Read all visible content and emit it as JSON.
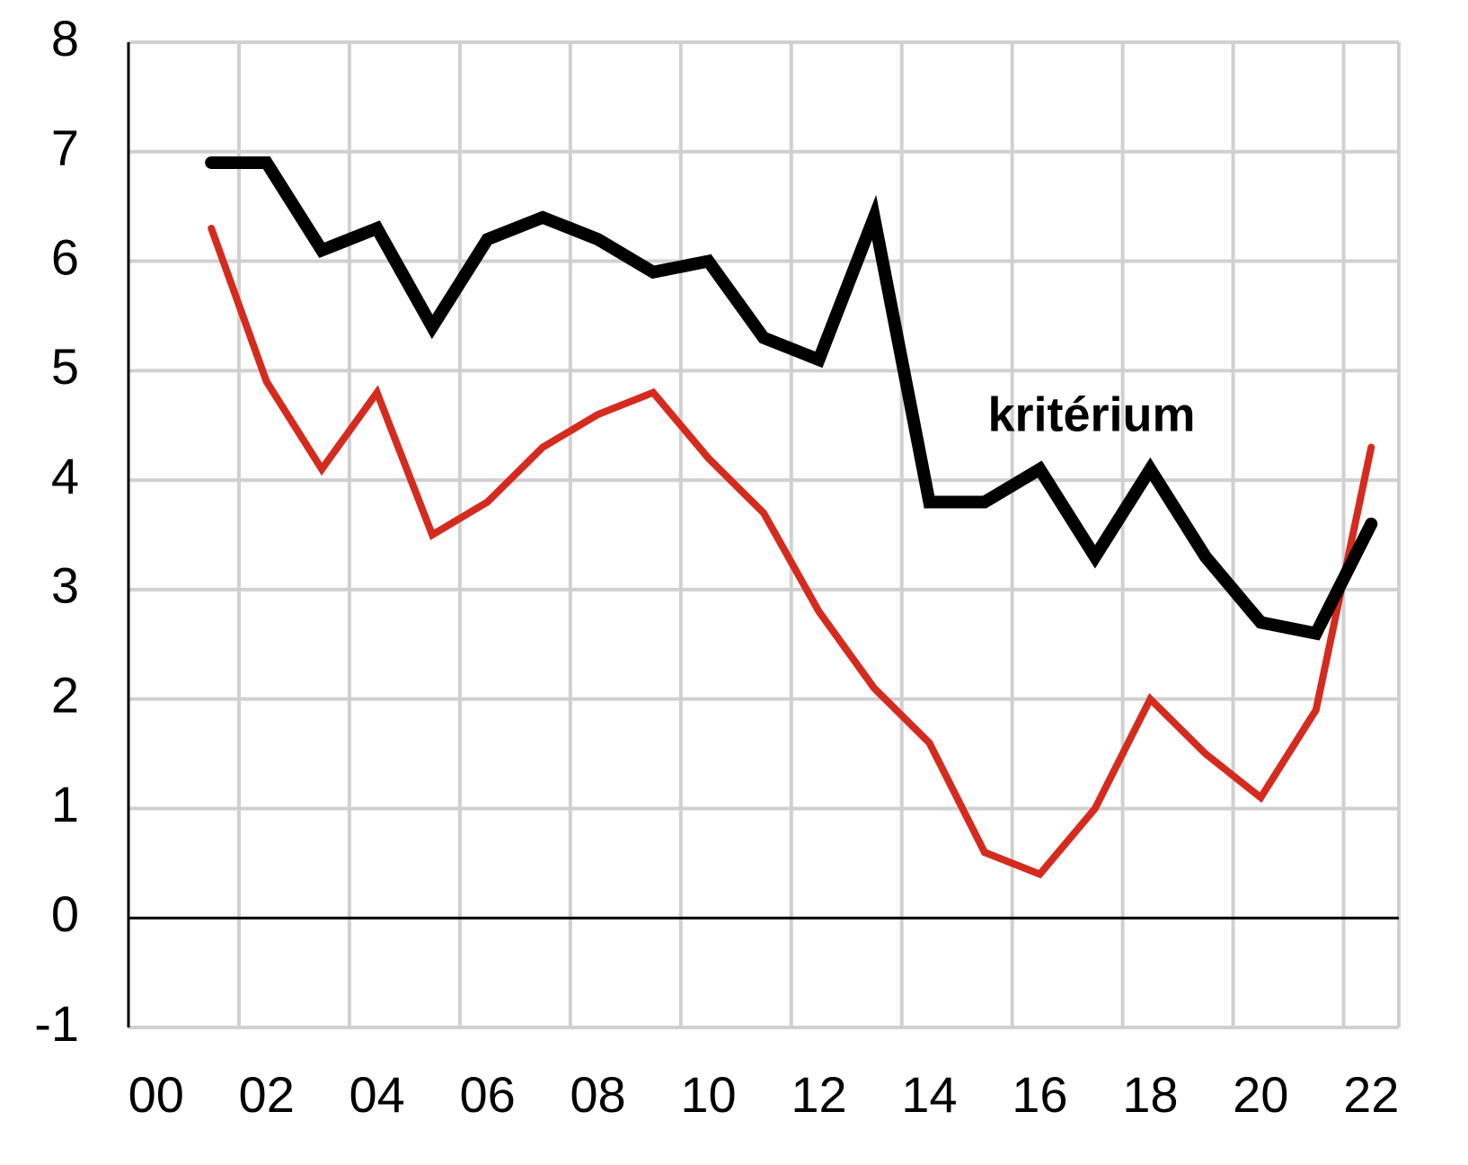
{
  "chart_data": {
    "type": "line",
    "categories": [
      "00",
      null,
      "02",
      null,
      "04",
      null,
      "06",
      null,
      "08",
      null,
      "10",
      null,
      "12",
      null,
      "14",
      null,
      "16",
      null,
      "18",
      null,
      "20",
      null,
      "22"
    ],
    "series": [
      {
        "color": "#d52b1e",
        "values": [
          null,
          6.3,
          4.9,
          4.1,
          4.8,
          3.5,
          3.8,
          4.3,
          4.6,
          4.8,
          4.2,
          3.7,
          2.8,
          2.1,
          1.6,
          0.6,
          0.4,
          1.0,
          2.0,
          1.5,
          1.1,
          1.9,
          4.3
        ]
      },
      {
        "color": "#000000",
        "values": [
          null,
          6.9,
          6.9,
          6.1,
          6.3,
          5.4,
          6.2,
          6.4,
          6.2,
          5.9,
          6.0,
          5.3,
          5.1,
          6.4,
          3.8,
          3.8,
          4.1,
          3.3,
          4.1,
          3.3,
          2.7,
          2.6,
          3.6
        ]
      }
    ],
    "annotation": "kritérium",
    "ylim": [
      -1,
      8
    ],
    "yticks": [
      -1,
      0,
      1,
      2,
      3,
      4,
      5,
      6,
      7,
      8
    ],
    "grid": true
  }
}
